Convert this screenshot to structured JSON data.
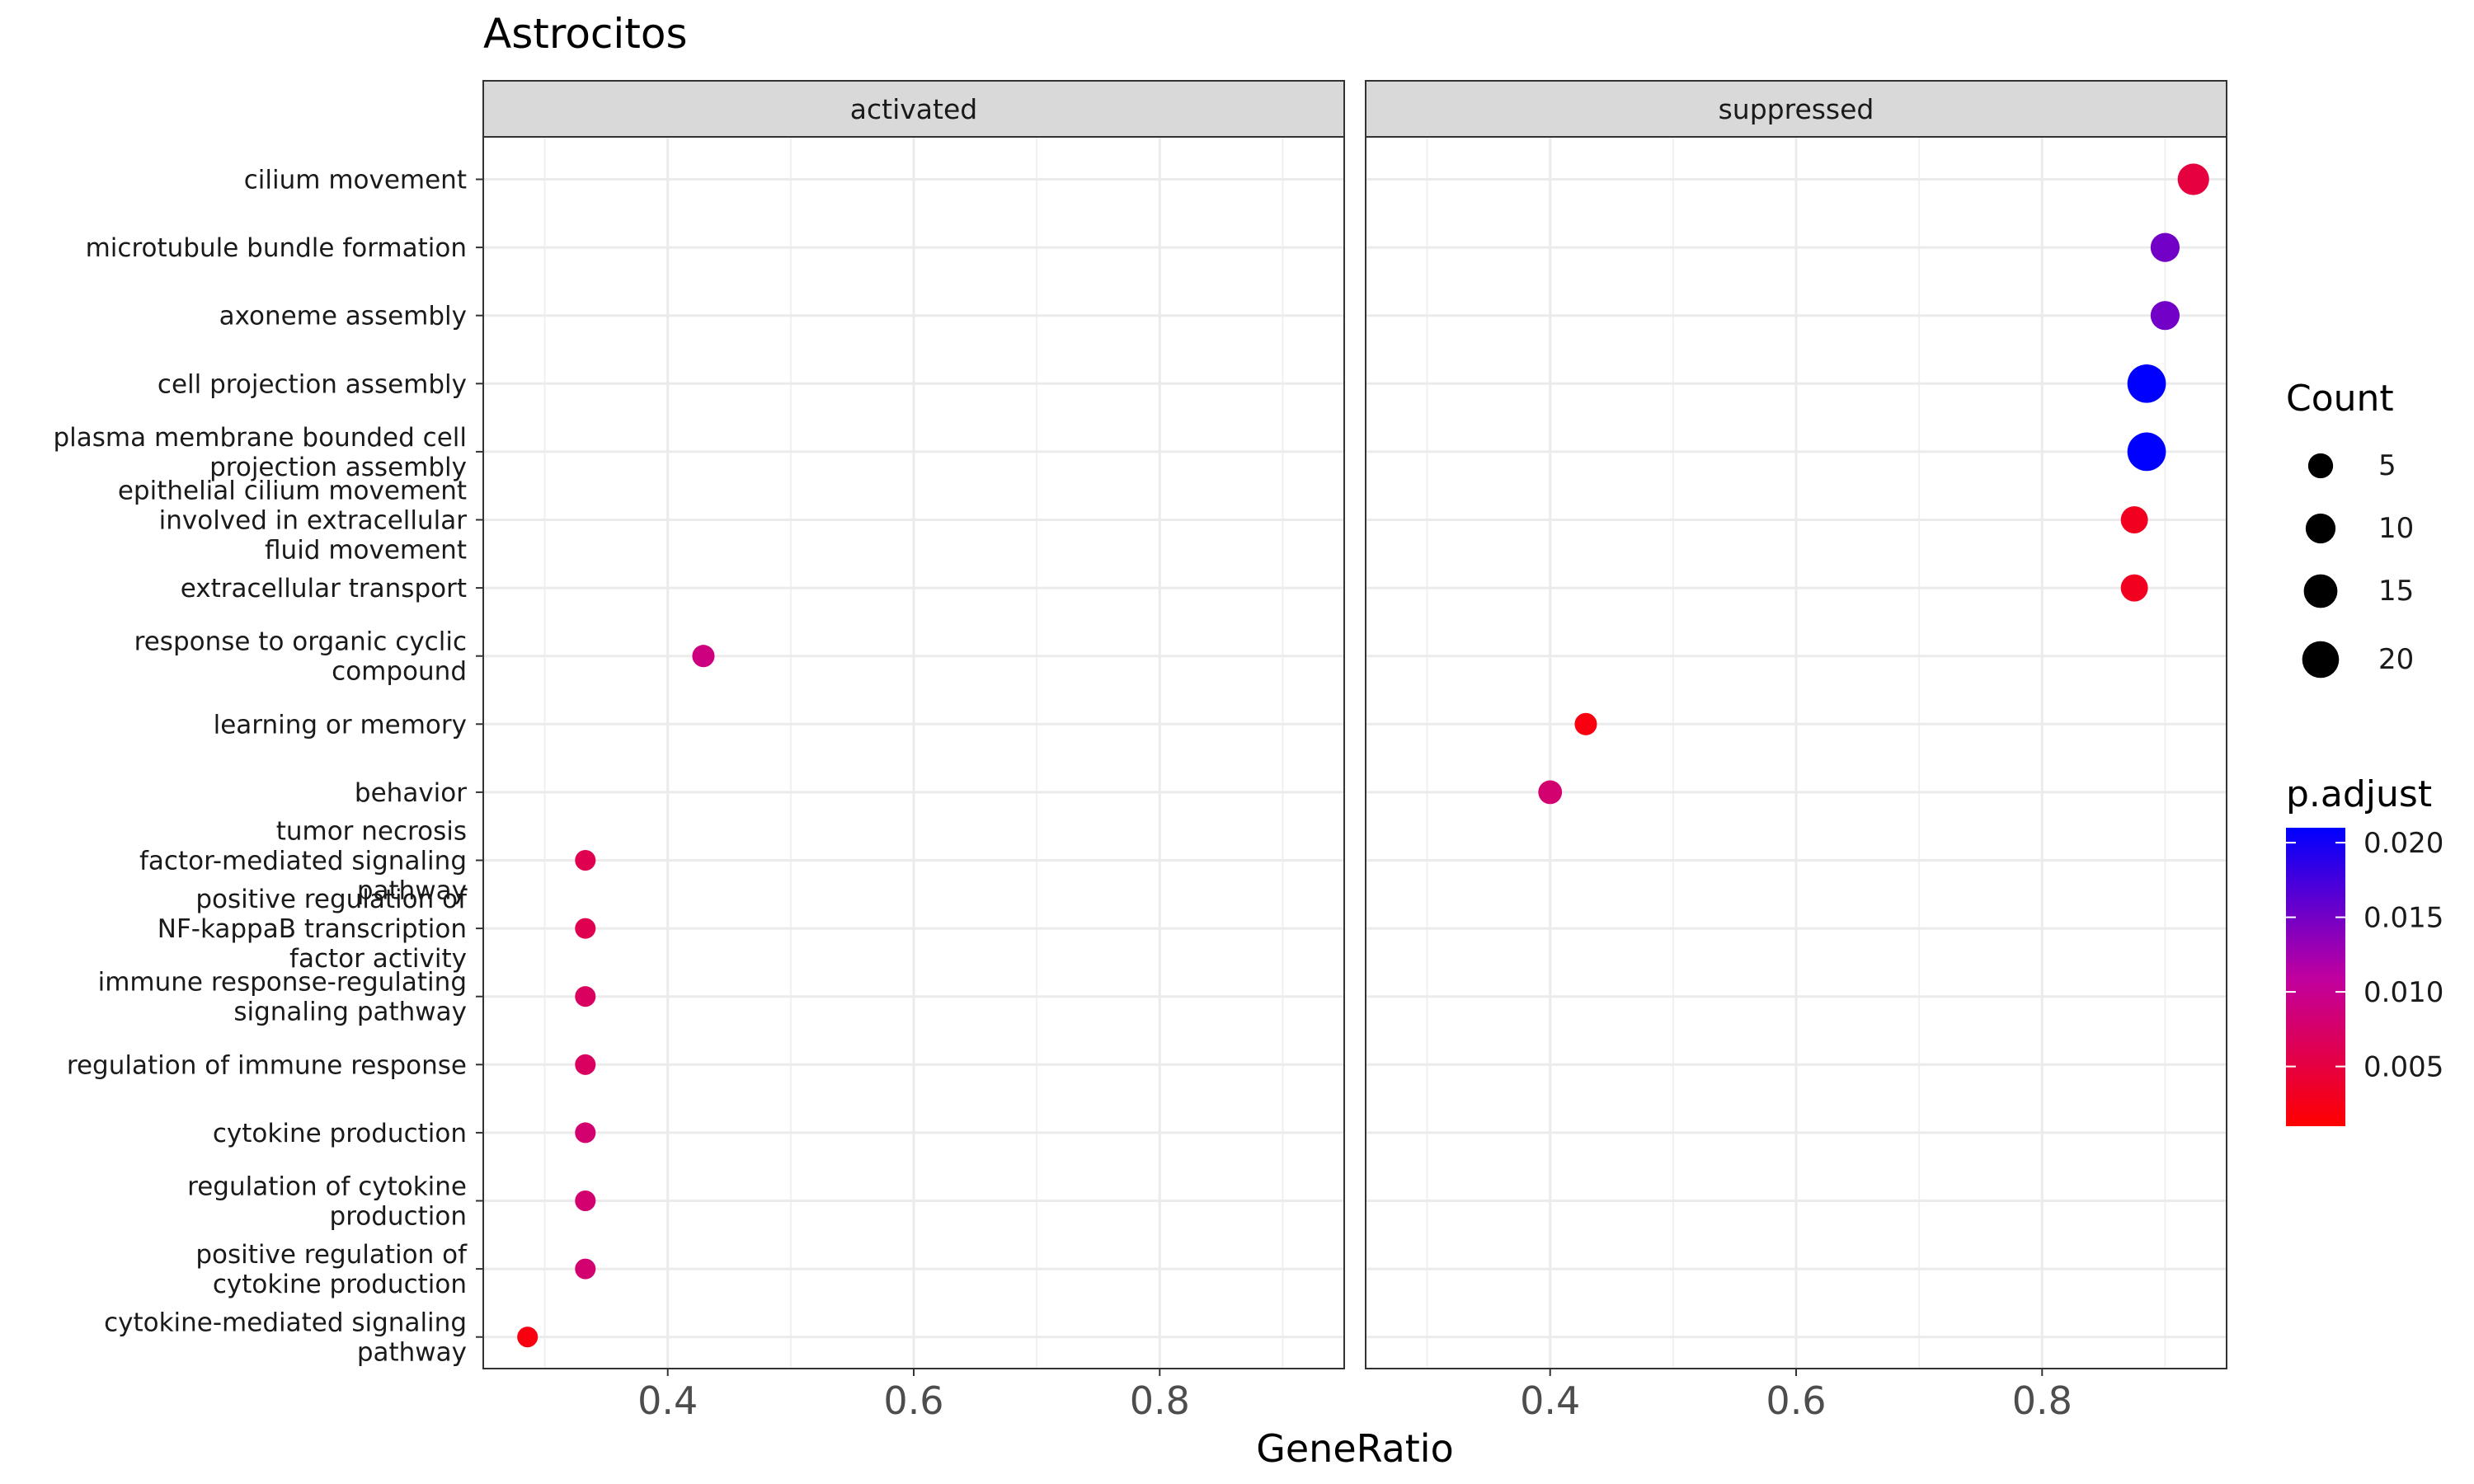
{
  "chart_data": {
    "type": "scatter",
    "title": "Astrocitos",
    "xlabel": "GeneRatio",
    "ylabel": "",
    "xlim": [
      0.25,
      0.95
    ],
    "x_ticks": [
      0.4,
      0.6,
      0.8
    ],
    "x_tick_labels": [
      "0.4",
      "0.6",
      "0.8"
    ],
    "panels": [
      "activated",
      "suppressed"
    ],
    "categories": [
      {
        "label": "cilium movement",
        "lines": [
          "cilium movement"
        ]
      },
      {
        "label": "microtubule bundle formation",
        "lines": [
          "microtubule bundle formation"
        ]
      },
      {
        "label": "axoneme assembly",
        "lines": [
          "axoneme assembly"
        ]
      },
      {
        "label": "cell projection assembly",
        "lines": [
          "cell projection assembly"
        ]
      },
      {
        "label": "plasma membrane bounded cell projection assembly",
        "lines": [
          "plasma membrane bounded cell",
          "projection assembly"
        ]
      },
      {
        "label": "epithelial cilium movement involved in extracellular fluid movement",
        "lines": [
          "epithelial cilium movement",
          "involved in extracellular",
          "fluid movement"
        ]
      },
      {
        "label": "extracellular transport",
        "lines": [
          "extracellular transport"
        ]
      },
      {
        "label": "response to organic cyclic compound",
        "lines": [
          "response to organic cyclic",
          "compound"
        ]
      },
      {
        "label": "learning or memory",
        "lines": [
          "learning or memory"
        ]
      },
      {
        "label": "behavior",
        "lines": [
          "behavior"
        ]
      },
      {
        "label": "tumor necrosis factor-mediated signaling pathway",
        "lines": [
          "tumor necrosis",
          "factor-mediated signaling",
          "pathway"
        ]
      },
      {
        "label": "positive regulation of NF-kappaB transcription factor activity",
        "lines": [
          "positive regulation of",
          "NF-kappaB transcription",
          "factor activity"
        ]
      },
      {
        "label": "immune response-regulating signaling pathway",
        "lines": [
          "immune response-regulating",
          "signaling pathway"
        ]
      },
      {
        "label": "regulation of immune response",
        "lines": [
          "regulation of immune response"
        ]
      },
      {
        "label": "cytokine production",
        "lines": [
          "cytokine production"
        ]
      },
      {
        "label": "regulation of cytokine production",
        "lines": [
          "regulation of cytokine",
          "production"
        ]
      },
      {
        "label": "positive regulation of cytokine production",
        "lines": [
          "positive regulation of",
          "cytokine production"
        ]
      },
      {
        "label": "cytokine-mediated signaling pathway",
        "lines": [
          "cytokine-mediated signaling",
          "pathway"
        ]
      }
    ],
    "points": [
      {
        "panel": "suppressed",
        "term": "cilium movement",
        "gene_ratio": 0.923,
        "count": 12,
        "p_adjust": 0.005
      },
      {
        "panel": "suppressed",
        "term": "microtubule bundle formation",
        "gene_ratio": 0.9,
        "count": 9,
        "p_adjust": 0.015
      },
      {
        "panel": "suppressed",
        "term": "axoneme assembly",
        "gene_ratio": 0.9,
        "count": 9,
        "p_adjust": 0.015
      },
      {
        "panel": "suppressed",
        "term": "cell projection assembly",
        "gene_ratio": 0.885,
        "count": 23,
        "p_adjust": 0.021
      },
      {
        "panel": "suppressed",
        "term": "plasma membrane bounded cell projection assembly",
        "gene_ratio": 0.885,
        "count": 23,
        "p_adjust": 0.021
      },
      {
        "panel": "suppressed",
        "term": "epithelial cilium movement involved in extracellular fluid movement",
        "gene_ratio": 0.875,
        "count": 7,
        "p_adjust": 0.003
      },
      {
        "panel": "suppressed",
        "term": "extracellular transport",
        "gene_ratio": 0.875,
        "count": 7,
        "p_adjust": 0.003
      },
      {
        "panel": "activated",
        "term": "response to organic cyclic compound",
        "gene_ratio": 0.429,
        "count": 3,
        "p_adjust": 0.009
      },
      {
        "panel": "suppressed",
        "term": "learning or memory",
        "gene_ratio": 0.429,
        "count": 3,
        "p_adjust": 0.002
      },
      {
        "panel": "suppressed",
        "term": "behavior",
        "gene_ratio": 0.4,
        "count": 4,
        "p_adjust": 0.008
      },
      {
        "panel": "activated",
        "term": "tumor necrosis factor-mediated signaling pathway",
        "gene_ratio": 0.333,
        "count": 2,
        "p_adjust": 0.006
      },
      {
        "panel": "activated",
        "term": "positive regulation of NF-kappaB transcription factor activity",
        "gene_ratio": 0.333,
        "count": 2,
        "p_adjust": 0.006
      },
      {
        "panel": "activated",
        "term": "immune response-regulating signaling pathway",
        "gene_ratio": 0.333,
        "count": 2,
        "p_adjust": 0.007
      },
      {
        "panel": "activated",
        "term": "regulation of immune response",
        "gene_ratio": 0.333,
        "count": 2,
        "p_adjust": 0.007
      },
      {
        "panel": "activated",
        "term": "cytokine production",
        "gene_ratio": 0.333,
        "count": 2,
        "p_adjust": 0.008
      },
      {
        "panel": "activated",
        "term": "regulation of cytokine production",
        "gene_ratio": 0.333,
        "count": 2,
        "p_adjust": 0.008
      },
      {
        "panel": "activated",
        "term": "positive regulation of cytokine production",
        "gene_ratio": 0.333,
        "count": 2,
        "p_adjust": 0.008
      },
      {
        "panel": "activated",
        "term": "cytokine-mediated signaling pathway",
        "gene_ratio": 0.286,
        "count": 2,
        "p_adjust": 0.002
      }
    ],
    "size_legend": {
      "title": "Count",
      "values": [
        5,
        10,
        15,
        20
      ],
      "labels": [
        "5",
        "10",
        "15",
        "20"
      ]
    },
    "color_legend": {
      "title": "p.adjust",
      "range": [
        0.001,
        0.021
      ],
      "ticks": [
        0.005,
        0.01,
        0.015,
        0.02
      ],
      "tick_labels": [
        "0.005",
        "0.010",
        "0.015",
        "0.020"
      ],
      "low_color": "#ff0000",
      "high_color": "#0000ff"
    }
  }
}
